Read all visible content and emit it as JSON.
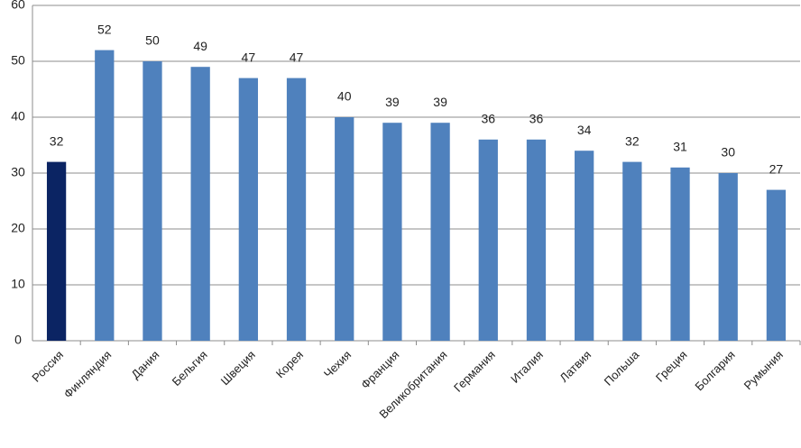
{
  "chart_data": {
    "type": "bar",
    "categories": [
      "Россия",
      "Финляндия",
      "Дания",
      "Бельгия",
      "Швеция",
      "Корея",
      "Чехия",
      "Франция",
      "Великобритания",
      "Германия",
      "Италия",
      "Латвия",
      "Польша",
      "Греция",
      "Болгария",
      "Румыния"
    ],
    "values": [
      32,
      52,
      50,
      49,
      47,
      47,
      40,
      39,
      39,
      36,
      36,
      34,
      32,
      31,
      30,
      27
    ],
    "colors": [
      "#0b2463",
      "#4f81bd",
      "#4f81bd",
      "#4f81bd",
      "#4f81bd",
      "#4f81bd",
      "#4f81bd",
      "#4f81bd",
      "#4f81bd",
      "#4f81bd",
      "#4f81bd",
      "#4f81bd",
      "#4f81bd",
      "#4f81bd",
      "#4f81bd",
      "#4f81bd"
    ],
    "ylim": [
      0,
      60
    ],
    "yticks": [
      0,
      10,
      20,
      30,
      40,
      50,
      60
    ],
    "grid": true
  }
}
